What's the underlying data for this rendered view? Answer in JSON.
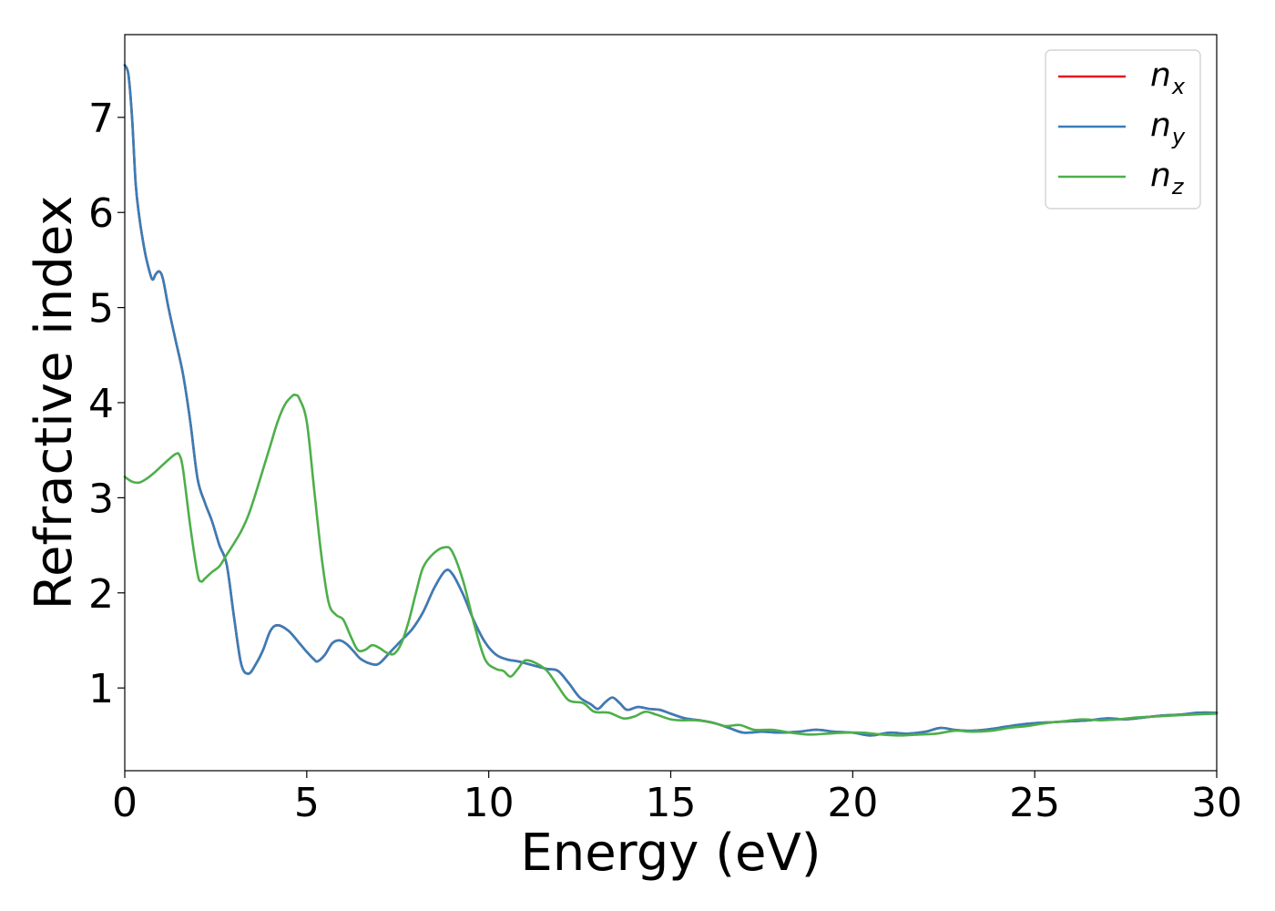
{
  "chart_data": {
    "type": "line",
    "title": "",
    "xlabel": "Energy (eV)",
    "ylabel": "Refractive index",
    "xlim": [
      0,
      30
    ],
    "ylim": [
      0.13,
      7.87
    ],
    "xticks": [
      0,
      5,
      10,
      15,
      20,
      25,
      30
    ],
    "yticks": [
      1,
      2,
      3,
      4,
      5,
      6,
      7
    ],
    "grid": false,
    "legend_position": "top-right",
    "legend": [
      {
        "base": "n",
        "sub": "x",
        "color": "#e41a1c"
      },
      {
        "base": "n",
        "sub": "y",
        "color": "#377eb8"
      },
      {
        "base": "n",
        "sub": "z",
        "color": "#4daf4a"
      }
    ],
    "series": [
      {
        "name": "nx",
        "color": "#e41a1c",
        "points": [
          [
            0,
            7.55
          ],
          [
            0.1,
            7.45
          ],
          [
            0.2,
            7.0
          ],
          [
            0.3,
            6.3
          ],
          [
            0.4,
            5.95
          ],
          [
            0.5,
            5.7
          ],
          [
            0.6,
            5.5
          ],
          [
            0.75,
            5.3
          ],
          [
            0.85,
            5.35
          ],
          [
            0.95,
            5.38
          ],
          [
            1.05,
            5.3
          ],
          [
            1.2,
            5.0
          ],
          [
            1.4,
            4.65
          ],
          [
            1.6,
            4.3
          ],
          [
            1.8,
            3.8
          ],
          [
            2.0,
            3.2
          ],
          [
            2.2,
            2.95
          ],
          [
            2.4,
            2.75
          ],
          [
            2.6,
            2.5
          ],
          [
            2.8,
            2.3
          ],
          [
            3.0,
            1.75
          ],
          [
            3.2,
            1.25
          ],
          [
            3.4,
            1.15
          ],
          [
            3.6,
            1.25
          ],
          [
            3.8,
            1.4
          ],
          [
            4.0,
            1.6
          ],
          [
            4.2,
            1.66
          ],
          [
            4.5,
            1.6
          ],
          [
            4.8,
            1.47
          ],
          [
            5.0,
            1.38
          ],
          [
            5.2,
            1.3
          ],
          [
            5.3,
            1.28
          ],
          [
            5.5,
            1.35
          ],
          [
            5.7,
            1.47
          ],
          [
            5.9,
            1.5
          ],
          [
            6.1,
            1.46
          ],
          [
            6.3,
            1.38
          ],
          [
            6.5,
            1.3
          ],
          [
            6.8,
            1.25
          ],
          [
            7.0,
            1.26
          ],
          [
            7.3,
            1.38
          ],
          [
            7.6,
            1.5
          ],
          [
            7.9,
            1.62
          ],
          [
            8.2,
            1.8
          ],
          [
            8.5,
            2.05
          ],
          [
            8.8,
            2.23
          ],
          [
            9.0,
            2.2
          ],
          [
            9.3,
            1.98
          ],
          [
            9.6,
            1.7
          ],
          [
            9.9,
            1.48
          ],
          [
            10.2,
            1.35
          ],
          [
            10.5,
            1.3
          ],
          [
            10.8,
            1.28
          ],
          [
            11.2,
            1.24
          ],
          [
            11.6,
            1.2
          ],
          [
            11.9,
            1.18
          ],
          [
            12.2,
            1.05
          ],
          [
            12.5,
            0.9
          ],
          [
            12.8,
            0.83
          ],
          [
            13.0,
            0.78
          ],
          [
            13.2,
            0.85
          ],
          [
            13.4,
            0.9
          ],
          [
            13.6,
            0.84
          ],
          [
            13.8,
            0.77
          ],
          [
            14.1,
            0.8
          ],
          [
            14.4,
            0.78
          ],
          [
            14.7,
            0.77
          ],
          [
            15.0,
            0.73
          ],
          [
            15.4,
            0.68
          ],
          [
            15.8,
            0.66
          ],
          [
            16.2,
            0.63
          ],
          [
            16.6,
            0.58
          ],
          [
            17.0,
            0.53
          ],
          [
            17.5,
            0.54
          ],
          [
            18.0,
            0.53
          ],
          [
            18.5,
            0.54
          ],
          [
            19.0,
            0.56
          ],
          [
            19.5,
            0.54
          ],
          [
            20.0,
            0.53
          ],
          [
            20.5,
            0.5
          ],
          [
            21.0,
            0.53
          ],
          [
            21.5,
            0.52
          ],
          [
            22.0,
            0.54
          ],
          [
            22.4,
            0.58
          ],
          [
            22.8,
            0.56
          ],
          [
            23.2,
            0.55
          ],
          [
            23.6,
            0.56
          ],
          [
            24.0,
            0.58
          ],
          [
            24.5,
            0.61
          ],
          [
            25.0,
            0.63
          ],
          [
            25.5,
            0.64
          ],
          [
            26.0,
            0.65
          ],
          [
            26.5,
            0.66
          ],
          [
            27.0,
            0.68
          ],
          [
            27.5,
            0.67
          ],
          [
            28.0,
            0.69
          ],
          [
            28.5,
            0.71
          ],
          [
            29.0,
            0.72
          ],
          [
            29.5,
            0.74
          ],
          [
            30.0,
            0.74
          ]
        ]
      },
      {
        "name": "ny",
        "color": "#377eb8",
        "points": [
          [
            0,
            7.55
          ],
          [
            0.1,
            7.45
          ],
          [
            0.2,
            7.0
          ],
          [
            0.3,
            6.3
          ],
          [
            0.4,
            5.95
          ],
          [
            0.5,
            5.7
          ],
          [
            0.6,
            5.5
          ],
          [
            0.75,
            5.3
          ],
          [
            0.85,
            5.35
          ],
          [
            0.95,
            5.38
          ],
          [
            1.05,
            5.3
          ],
          [
            1.2,
            5.0
          ],
          [
            1.4,
            4.65
          ],
          [
            1.6,
            4.3
          ],
          [
            1.8,
            3.8
          ],
          [
            2.0,
            3.2
          ],
          [
            2.2,
            2.95
          ],
          [
            2.4,
            2.75
          ],
          [
            2.6,
            2.5
          ],
          [
            2.8,
            2.3
          ],
          [
            3.0,
            1.75
          ],
          [
            3.2,
            1.25
          ],
          [
            3.4,
            1.15
          ],
          [
            3.6,
            1.25
          ],
          [
            3.8,
            1.4
          ],
          [
            4.0,
            1.6
          ],
          [
            4.2,
            1.66
          ],
          [
            4.5,
            1.6
          ],
          [
            4.8,
            1.47
          ],
          [
            5.0,
            1.38
          ],
          [
            5.2,
            1.3
          ],
          [
            5.3,
            1.28
          ],
          [
            5.5,
            1.35
          ],
          [
            5.7,
            1.47
          ],
          [
            5.9,
            1.5
          ],
          [
            6.1,
            1.46
          ],
          [
            6.3,
            1.38
          ],
          [
            6.5,
            1.3
          ],
          [
            6.8,
            1.25
          ],
          [
            7.0,
            1.26
          ],
          [
            7.3,
            1.38
          ],
          [
            7.6,
            1.5
          ],
          [
            7.9,
            1.62
          ],
          [
            8.2,
            1.8
          ],
          [
            8.5,
            2.05
          ],
          [
            8.8,
            2.23
          ],
          [
            9.0,
            2.2
          ],
          [
            9.3,
            1.98
          ],
          [
            9.6,
            1.7
          ],
          [
            9.9,
            1.48
          ],
          [
            10.2,
            1.35
          ],
          [
            10.5,
            1.3
          ],
          [
            10.8,
            1.28
          ],
          [
            11.2,
            1.24
          ],
          [
            11.6,
            1.2
          ],
          [
            11.9,
            1.18
          ],
          [
            12.2,
            1.05
          ],
          [
            12.5,
            0.9
          ],
          [
            12.8,
            0.83
          ],
          [
            13.0,
            0.78
          ],
          [
            13.2,
            0.85
          ],
          [
            13.4,
            0.9
          ],
          [
            13.6,
            0.84
          ],
          [
            13.8,
            0.77
          ],
          [
            14.1,
            0.8
          ],
          [
            14.4,
            0.78
          ],
          [
            14.7,
            0.77
          ],
          [
            15.0,
            0.73
          ],
          [
            15.4,
            0.68
          ],
          [
            15.8,
            0.66
          ],
          [
            16.2,
            0.63
          ],
          [
            16.6,
            0.58
          ],
          [
            17.0,
            0.53
          ],
          [
            17.5,
            0.54
          ],
          [
            18.0,
            0.53
          ],
          [
            18.5,
            0.54
          ],
          [
            19.0,
            0.56
          ],
          [
            19.5,
            0.54
          ],
          [
            20.0,
            0.53
          ],
          [
            20.5,
            0.5
          ],
          [
            21.0,
            0.53
          ],
          [
            21.5,
            0.52
          ],
          [
            22.0,
            0.54
          ],
          [
            22.4,
            0.58
          ],
          [
            22.8,
            0.56
          ],
          [
            23.2,
            0.55
          ],
          [
            23.6,
            0.56
          ],
          [
            24.0,
            0.58
          ],
          [
            24.5,
            0.61
          ],
          [
            25.0,
            0.63
          ],
          [
            25.5,
            0.64
          ],
          [
            26.0,
            0.65
          ],
          [
            26.5,
            0.66
          ],
          [
            27.0,
            0.68
          ],
          [
            27.5,
            0.67
          ],
          [
            28.0,
            0.69
          ],
          [
            28.5,
            0.71
          ],
          [
            29.0,
            0.72
          ],
          [
            29.5,
            0.74
          ],
          [
            30.0,
            0.74
          ]
        ]
      },
      {
        "name": "nz",
        "color": "#4daf4a",
        "points": [
          [
            0,
            3.22
          ],
          [
            0.2,
            3.17
          ],
          [
            0.4,
            3.16
          ],
          [
            0.6,
            3.2
          ],
          [
            0.8,
            3.26
          ],
          [
            1.0,
            3.33
          ],
          [
            1.2,
            3.4
          ],
          [
            1.4,
            3.46
          ],
          [
            1.5,
            3.45
          ],
          [
            1.6,
            3.3
          ],
          [
            1.8,
            2.7
          ],
          [
            2.0,
            2.2
          ],
          [
            2.1,
            2.12
          ],
          [
            2.2,
            2.15
          ],
          [
            2.4,
            2.22
          ],
          [
            2.6,
            2.28
          ],
          [
            2.8,
            2.4
          ],
          [
            3.0,
            2.52
          ],
          [
            3.2,
            2.65
          ],
          [
            3.4,
            2.82
          ],
          [
            3.6,
            3.05
          ],
          [
            3.8,
            3.3
          ],
          [
            4.0,
            3.55
          ],
          [
            4.2,
            3.8
          ],
          [
            4.4,
            3.98
          ],
          [
            4.6,
            4.07
          ],
          [
            4.7,
            4.08
          ],
          [
            4.8,
            4.04
          ],
          [
            5.0,
            3.8
          ],
          [
            5.2,
            3.1
          ],
          [
            5.4,
            2.4
          ],
          [
            5.6,
            1.9
          ],
          [
            5.8,
            1.77
          ],
          [
            6.0,
            1.72
          ],
          [
            6.2,
            1.55
          ],
          [
            6.4,
            1.4
          ],
          [
            6.6,
            1.4
          ],
          [
            6.8,
            1.45
          ],
          [
            7.0,
            1.42
          ],
          [
            7.2,
            1.37
          ],
          [
            7.4,
            1.36
          ],
          [
            7.6,
            1.47
          ],
          [
            7.8,
            1.7
          ],
          [
            8.0,
            2.0
          ],
          [
            8.2,
            2.27
          ],
          [
            8.5,
            2.42
          ],
          [
            8.8,
            2.48
          ],
          [
            9.0,
            2.43
          ],
          [
            9.3,
            2.12
          ],
          [
            9.6,
            1.67
          ],
          [
            9.9,
            1.3
          ],
          [
            10.2,
            1.2
          ],
          [
            10.4,
            1.18
          ],
          [
            10.6,
            1.12
          ],
          [
            10.8,
            1.2
          ],
          [
            11.0,
            1.29
          ],
          [
            11.3,
            1.26
          ],
          [
            11.6,
            1.18
          ],
          [
            11.9,
            1.02
          ],
          [
            12.2,
            0.87
          ],
          [
            12.6,
            0.84
          ],
          [
            12.9,
            0.75
          ],
          [
            13.3,
            0.74
          ],
          [
            13.7,
            0.68
          ],
          [
            14.0,
            0.7
          ],
          [
            14.3,
            0.75
          ],
          [
            14.6,
            0.72
          ],
          [
            15.0,
            0.67
          ],
          [
            15.3,
            0.66
          ],
          [
            15.7,
            0.66
          ],
          [
            16.1,
            0.64
          ],
          [
            16.5,
            0.6
          ],
          [
            16.9,
            0.61
          ],
          [
            17.3,
            0.56
          ],
          [
            17.8,
            0.56
          ],
          [
            18.3,
            0.53
          ],
          [
            18.8,
            0.51
          ],
          [
            19.3,
            0.52
          ],
          [
            19.8,
            0.53
          ],
          [
            20.3,
            0.53
          ],
          [
            20.8,
            0.51
          ],
          [
            21.3,
            0.5
          ],
          [
            21.8,
            0.51
          ],
          [
            22.3,
            0.52
          ],
          [
            22.8,
            0.55
          ],
          [
            23.3,
            0.54
          ],
          [
            23.8,
            0.55
          ],
          [
            24.3,
            0.58
          ],
          [
            24.8,
            0.6
          ],
          [
            25.3,
            0.63
          ],
          [
            25.8,
            0.65
          ],
          [
            26.3,
            0.67
          ],
          [
            26.8,
            0.66
          ],
          [
            27.3,
            0.67
          ],
          [
            27.8,
            0.69
          ],
          [
            28.3,
            0.7
          ],
          [
            28.8,
            0.71
          ],
          [
            29.3,
            0.72
          ],
          [
            30.0,
            0.73
          ]
        ]
      }
    ]
  }
}
